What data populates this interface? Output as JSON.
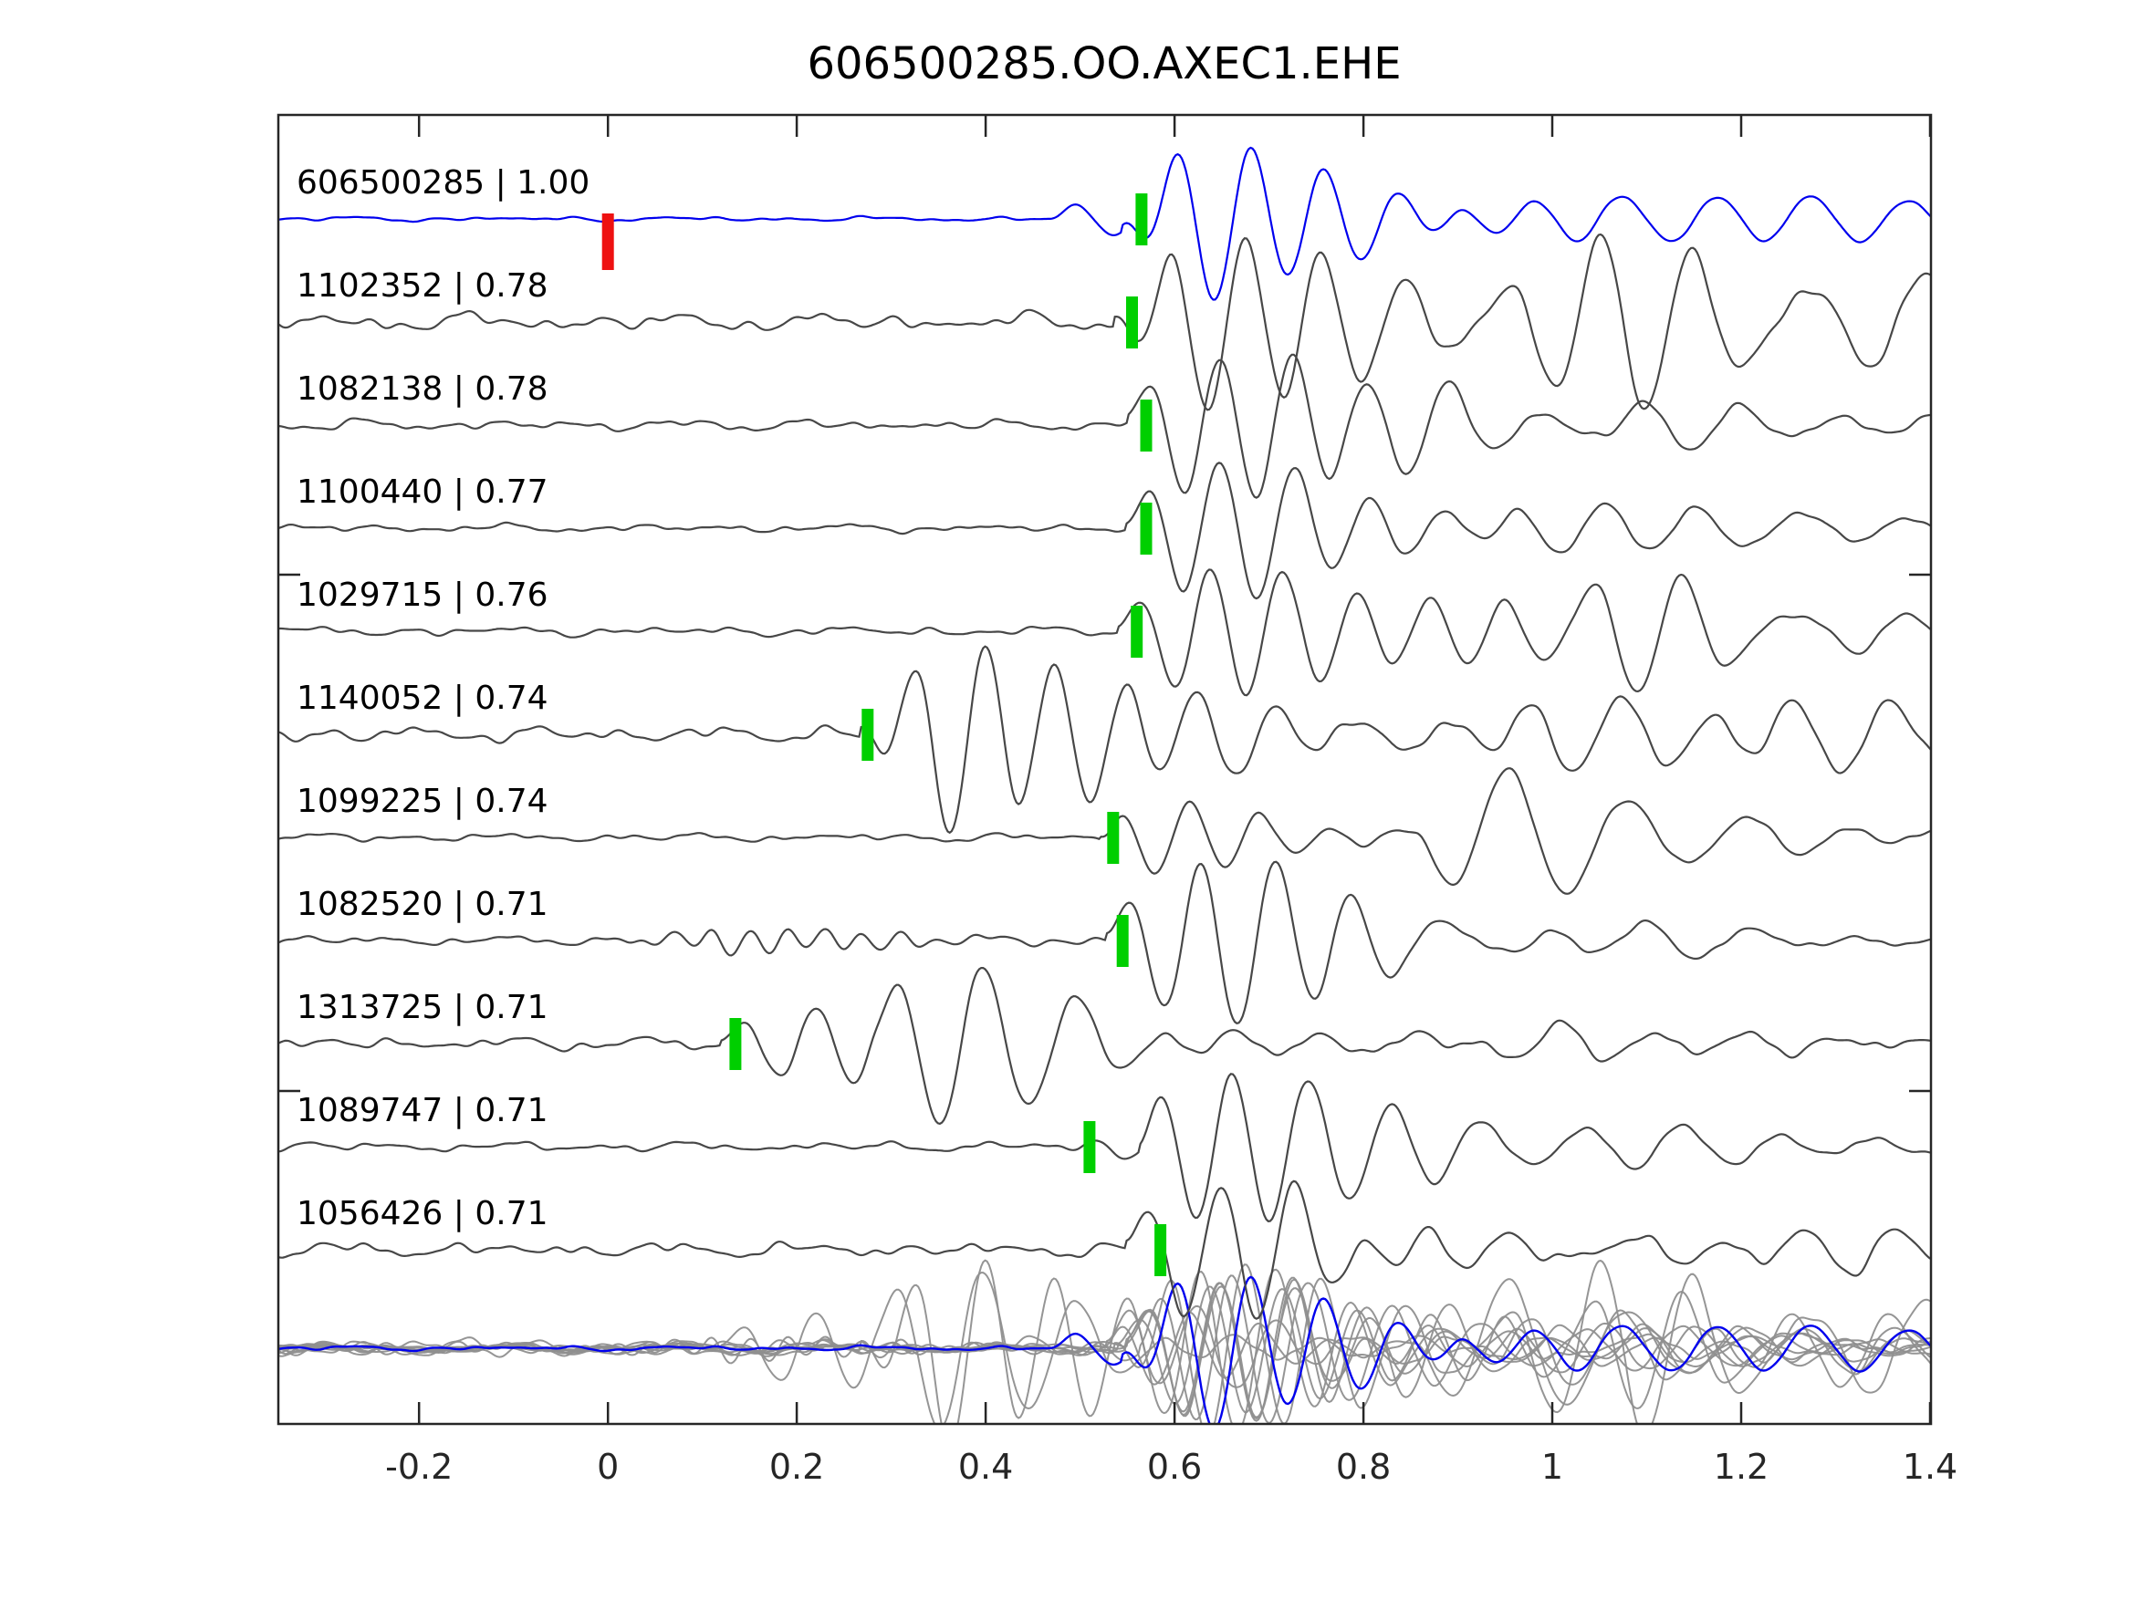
{
  "title": "606500285.OO.AXEC1.EHE",
  "chart_data": {
    "type": "line",
    "title": "606500285.OO.AXEC1.EHE",
    "subtitle": "",
    "xlabel": "",
    "ylabel": "",
    "xlim": [
      -0.349,
      1.401
    ],
    "x_ticks": [
      -0.2,
      0,
      0.2,
      0.4,
      0.6,
      0.8,
      1,
      1.2,
      1.4
    ],
    "x_tick_labels": [
      "-0.2",
      "0",
      "0.2",
      "0.4",
      "0.6",
      "0.8",
      "1",
      "1.2",
      "1.4"
    ],
    "grid": false,
    "legend_position": "none",
    "colors": {
      "template_trace": "#0000ee",
      "detection_trace": "#474747",
      "overlay_trace": "#8f8f8f",
      "pick_marker": "#00cf00",
      "origin_marker": "#ee1111",
      "axis": "#262626",
      "label_text": "#000000",
      "background": "#ffffff"
    },
    "origin_marker": {
      "trace_id": "606500285",
      "time": 0.0,
      "color": "#ee1111"
    },
    "pick_marker_color": "#00cf00",
    "traces": [
      {
        "id": "606500285",
        "corr": "1.00",
        "label": "606500285 | 1.00",
        "role": "template",
        "color": "#0000ee",
        "pick_time": 0.565,
        "onset": 0.545,
        "amp": 62,
        "sign": -1,
        "period": 0.078,
        "decay": 0.1,
        "noise": 3,
        "coda": 0.12,
        "seed": 101,
        "extras": [
          {
            "t": 0.468,
            "amp": 17,
            "sign": 1,
            "P": 0.09,
            "d": 0.05
          },
          {
            "t": 0.85,
            "amp": 11,
            "sign": 1,
            "P": 0.1,
            "d": 0.15
          },
          {
            "t": 1.1,
            "amp": 8,
            "sign": -1,
            "P": 0.1,
            "d": 0.18
          }
        ]
      },
      {
        "id": "1102352",
        "corr": "0.78",
        "label": "1102352 | 0.78",
        "role": "detection",
        "color": "#474747",
        "pick_time": 0.555,
        "onset": 0.535,
        "amp": 54,
        "sign": -1,
        "period": 0.08,
        "decay": 0.13,
        "noise": 11,
        "coda": 0.2,
        "seed": 202,
        "extras": [
          {
            "t": 0.75,
            "amp": 22,
            "sign": 1,
            "P": 0.09,
            "d": 0.2
          },
          {
            "t": 0.93,
            "amp": 26,
            "sign": 1,
            "P": 0.1,
            "d": 0.2
          },
          {
            "t": 1.15,
            "amp": 22,
            "sign": 1,
            "P": 0.11,
            "d": 0.25
          }
        ]
      },
      {
        "id": "1082138",
        "corr": "0.78",
        "label": "1082138 | 0.78",
        "role": "detection",
        "color": "#474747",
        "pick_time": 0.57,
        "onset": 0.55,
        "amp": 56,
        "sign": 1,
        "period": 0.078,
        "decay": 0.11,
        "noise": 7,
        "coda": 0.15,
        "seed": 303,
        "extras": [
          {
            "t": 0.79,
            "amp": 18,
            "sign": 1,
            "P": 0.09,
            "d": 0.13
          },
          {
            "t": 1.03,
            "amp": 12,
            "sign": -1,
            "P": 0.1,
            "d": 0.16
          }
        ]
      },
      {
        "id": "1100440",
        "corr": "0.77",
        "label": "1100440 | 0.77",
        "role": "detection",
        "color": "#474747",
        "pick_time": 0.57,
        "onset": 0.548,
        "amp": 58,
        "sign": 1,
        "period": 0.08,
        "decay": 0.1,
        "noise": 5,
        "coda": 0.12,
        "seed": 404,
        "extras": [
          {
            "t": 0.93,
            "amp": 14,
            "sign": 1,
            "P": 0.1,
            "d": 0.15
          },
          {
            "t": 1.2,
            "amp": 8,
            "sign": -1,
            "P": 0.11,
            "d": 0.15
          }
        ]
      },
      {
        "id": "1029715",
        "corr": "0.76",
        "label": "1029715 | 0.76",
        "role": "detection",
        "color": "#474747",
        "pick_time": 0.56,
        "onset": 0.54,
        "amp": 52,
        "sign": 1,
        "period": 0.078,
        "decay": 0.11,
        "noise": 6,
        "coda": 0.13,
        "seed": 505,
        "extras": [
          {
            "t": 0.84,
            "amp": 14,
            "sign": 1,
            "P": 0.09,
            "d": 0.12
          },
          {
            "t": 1.02,
            "amp": 46,
            "sign": 1,
            "P": 0.095,
            "d": 0.09
          },
          {
            "t": 1.15,
            "amp": 24,
            "sign": 1,
            "P": 0.1,
            "d": 0.12
          }
        ]
      },
      {
        "id": "1140052",
        "corr": "0.74",
        "label": "1140052 | 0.74",
        "role": "detection",
        "color": "#474747",
        "pick_time": 0.275,
        "onset": 0.268,
        "amp": 64,
        "sign": -1,
        "period": 0.075,
        "decay": 0.12,
        "noise": 10,
        "coda": 0.18,
        "seed": 606,
        "extras": [
          {
            "t": 0.6,
            "amp": 15,
            "sign": 1,
            "P": 0.09,
            "d": 0.13
          },
          {
            "t": 0.9,
            "amp": 17,
            "sign": -1,
            "P": 0.1,
            "d": 0.15
          },
          {
            "t": 1.16,
            "amp": 20,
            "sign": -1,
            "P": 0.11,
            "d": 0.13
          }
        ]
      },
      {
        "id": "1099225",
        "corr": "0.74",
        "label": "1099225 | 0.74",
        "role": "detection",
        "color": "#474747",
        "pick_time": 0.535,
        "onset": 0.522,
        "amp": 34,
        "sign": 1,
        "period": 0.075,
        "decay": 0.08,
        "noise": 5,
        "coda": 0.1,
        "seed": 707,
        "extras": [
          {
            "t": 0.855,
            "amp": 56,
            "sign": -1,
            "P": 0.13,
            "d": 0.1
          },
          {
            "t": 1.18,
            "amp": 9,
            "sign": 1,
            "P": 0.1,
            "d": 0.12
          }
        ]
      },
      {
        "id": "1082520",
        "corr": "0.71",
        "label": "1082520 | 0.71",
        "role": "detection",
        "color": "#474747",
        "pick_time": 0.545,
        "onset": 0.527,
        "amp": 58,
        "sign": 1,
        "period": 0.08,
        "decay": 0.12,
        "noise": 6,
        "coda": 0.14,
        "seed": 808,
        "extras": [
          {
            "t": 0.02,
            "amp": 8,
            "sign": 1,
            "P": 0.04,
            "d": 0.12
          },
          {
            "t": 0.79,
            "amp": 20,
            "sign": 1,
            "P": 0.09,
            "d": 0.13
          },
          {
            "t": 1.04,
            "amp": 13,
            "sign": -1,
            "P": 0.1,
            "d": 0.13
          }
        ]
      },
      {
        "id": "1313725",
        "corr": "0.71",
        "label": "1313725 | 0.71",
        "role": "detection",
        "color": "#474747",
        "pick_time": 0.135,
        "onset": 0.12,
        "amp": 34,
        "sign": 1,
        "period": 0.08,
        "decay": 0.1,
        "noise": 8,
        "coda": 0.16,
        "seed": 909,
        "extras": [
          {
            "t": 0.283,
            "amp": 56,
            "sign": 1,
            "P": 0.095,
            "d": 0.11
          },
          {
            "t": 0.52,
            "amp": 13,
            "sign": 1,
            "P": 0.1,
            "d": 0.13
          },
          {
            "t": 0.88,
            "amp": 11,
            "sign": 1,
            "P": 0.1,
            "d": 0.15
          }
        ]
      },
      {
        "id": "1089747",
        "corr": "0.71",
        "label": "1089747 | 0.71",
        "role": "detection",
        "color": "#474747",
        "pick_time": 0.51,
        "onset": 0.562,
        "amp": 62,
        "sign": 1,
        "period": 0.08,
        "decay": 0.1,
        "noise": 6,
        "coda": 0.12,
        "seed": 1010,
        "extras": [
          {
            "t": 0.495,
            "amp": 11,
            "sign": 1,
            "P": 0.07,
            "d": 0.08
          },
          {
            "t": 0.73,
            "amp": 20,
            "sign": 1,
            "P": 0.09,
            "d": 0.13
          },
          {
            "t": 0.97,
            "amp": 14,
            "sign": -1,
            "P": 0.1,
            "d": 0.13
          }
        ]
      },
      {
        "id": "1056426",
        "corr": "0.71",
        "label": "1056426 | 0.71",
        "role": "detection",
        "color": "#474747",
        "pick_time": 0.585,
        "onset": 0.548,
        "amp": 54,
        "sign": 1,
        "period": 0.08,
        "decay": 0.11,
        "noise": 9,
        "coda": 0.16,
        "seed": 1111,
        "extras": [
          {
            "t": 0.74,
            "amp": 24,
            "sign": 1,
            "P": 0.09,
            "d": 0.13
          },
          {
            "t": 0.91,
            "amp": 20,
            "sign": -1,
            "P": 0.1,
            "d": 0.13
          },
          {
            "t": 1.13,
            "amp": 13,
            "sign": 1,
            "P": 0.1,
            "d": 0.15
          }
        ]
      }
    ],
    "overlay_row": {
      "description": "All detection waveforms overplotted in gray with the blue template waveform on top, at the bottom of the axes",
      "detection_color": "#8f8f8f",
      "template_color": "#0000ee"
    }
  }
}
